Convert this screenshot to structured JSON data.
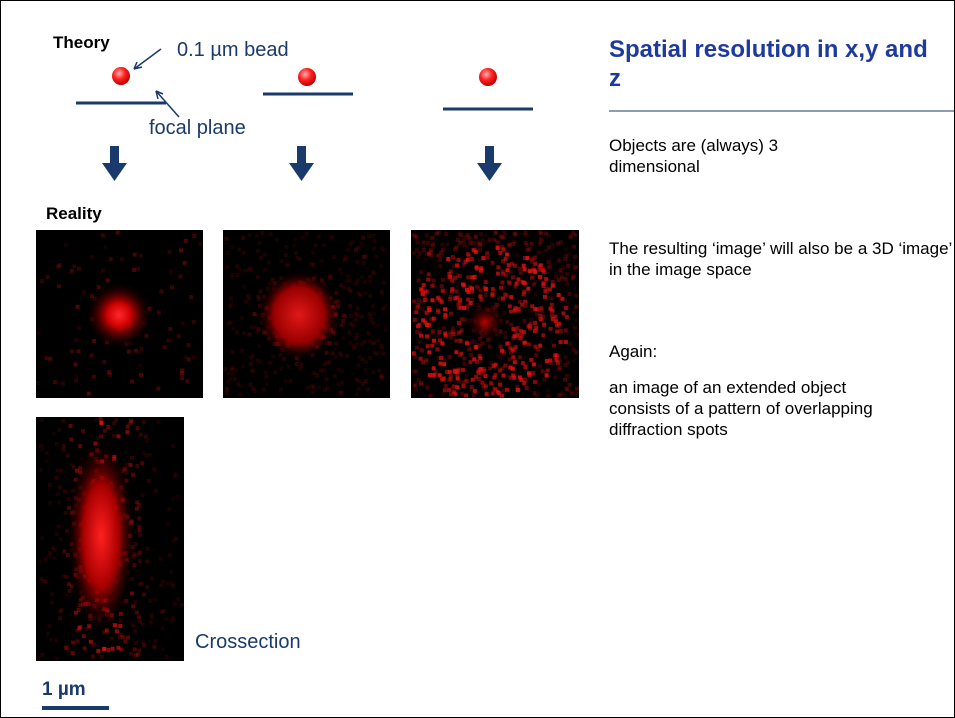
{
  "slide": {
    "title": "Spatial resolution in x,y and z",
    "diagram": {
      "theory_label": "Theory",
      "bead_label": "0.1 µm bead",
      "focal_plane_label": "focal plane",
      "reality_label": "Reality",
      "crossection_label": "Crossection",
      "scale_label": "1 µm"
    },
    "paragraphs": [
      "Objects are (always) 3 dimensional",
      "The resulting ‘image’ will also be a 3D ‘image’ in the image space",
      "Again:",
      "an image of an extended object consists of a pattern of overlapping diffraction spots"
    ]
  }
}
